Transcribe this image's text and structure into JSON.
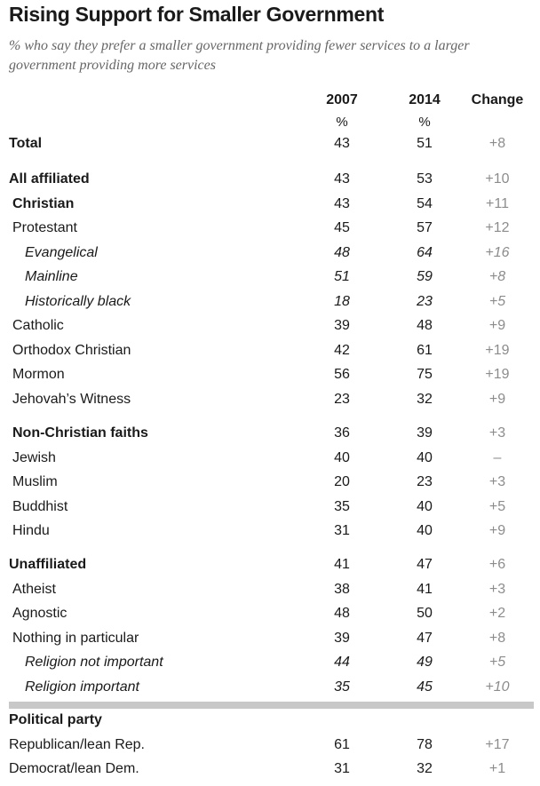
{
  "chart_data": {
    "type": "table",
    "title": "Rising Support for Smaller Government",
    "subtitle": "% who say they prefer a smaller government providing fewer services to a larger government providing more services",
    "columns": [
      "2007",
      "2014",
      "Change"
    ],
    "units_row": [
      "%",
      "%",
      ""
    ],
    "groups": [
      {
        "rows": [
          {
            "label": "Total",
            "level": 0,
            "bold": true,
            "italic": false,
            "y2007": "43",
            "y2014": "51",
            "change": "+8"
          }
        ]
      },
      {
        "rows": [
          {
            "label": "All affiliated",
            "level": 0,
            "bold": true,
            "italic": false,
            "y2007": "43",
            "y2014": "53",
            "change": "+10"
          },
          {
            "label": "Christian",
            "level": 1,
            "bold": true,
            "italic": false,
            "y2007": "43",
            "y2014": "54",
            "change": "+11"
          },
          {
            "label": "Protestant",
            "level": 1,
            "bold": false,
            "italic": false,
            "y2007": "45",
            "y2014": "57",
            "change": "+12"
          },
          {
            "label": "Evangelical",
            "level": 2,
            "bold": false,
            "italic": true,
            "y2007": "48",
            "y2014": "64",
            "change": "+16"
          },
          {
            "label": "Mainline",
            "level": 2,
            "bold": false,
            "italic": true,
            "y2007": "51",
            "y2014": "59",
            "change": "+8"
          },
          {
            "label": "Historically black",
            "level": 2,
            "bold": false,
            "italic": true,
            "y2007": "18",
            "y2014": "23",
            "change": "+5"
          },
          {
            "label": "Catholic",
            "level": 1,
            "bold": false,
            "italic": false,
            "y2007": "39",
            "y2014": "48",
            "change": "+9"
          },
          {
            "label": "Orthodox Christian",
            "level": 1,
            "bold": false,
            "italic": false,
            "y2007": "42",
            "y2014": "61",
            "change": "+19"
          },
          {
            "label": "Mormon",
            "level": 1,
            "bold": false,
            "italic": false,
            "y2007": "56",
            "y2014": "75",
            "change": "+19"
          },
          {
            "label": "Jehovah’s Witness",
            "level": 1,
            "bold": false,
            "italic": false,
            "y2007": "23",
            "y2014": "32",
            "change": "+9"
          }
        ]
      },
      {
        "rows": [
          {
            "label": "Non-Christian faiths",
            "level": 1,
            "bold": true,
            "italic": false,
            "y2007": "36",
            "y2014": "39",
            "change": "+3"
          },
          {
            "label": "Jewish",
            "level": 1,
            "bold": false,
            "italic": false,
            "y2007": "40",
            "y2014": "40",
            "change": "–"
          },
          {
            "label": "Muslim",
            "level": 1,
            "bold": false,
            "italic": false,
            "y2007": "20",
            "y2014": "23",
            "change": "+3"
          },
          {
            "label": "Buddhist",
            "level": 1,
            "bold": false,
            "italic": false,
            "y2007": "35",
            "y2014": "40",
            "change": "+5"
          },
          {
            "label": "Hindu",
            "level": 1,
            "bold": false,
            "italic": false,
            "y2007": "31",
            "y2014": "40",
            "change": "+9"
          }
        ]
      },
      {
        "rows": [
          {
            "label": "Unaffiliated",
            "level": 0,
            "bold": true,
            "italic": false,
            "y2007": "41",
            "y2014": "47",
            "change": "+6"
          },
          {
            "label": "Atheist",
            "level": 1,
            "bold": false,
            "italic": false,
            "y2007": "38",
            "y2014": "41",
            "change": "+3"
          },
          {
            "label": "Agnostic",
            "level": 1,
            "bold": false,
            "italic": false,
            "y2007": "48",
            "y2014": "50",
            "change": "+2"
          },
          {
            "label": "Nothing in particular",
            "level": 1,
            "bold": false,
            "italic": false,
            "y2007": "39",
            "y2014": "47",
            "change": "+8"
          },
          {
            "label": "Religion not important",
            "level": 2,
            "bold": false,
            "italic": true,
            "y2007": "44",
            "y2014": "49",
            "change": "+5"
          },
          {
            "label": "Religion important",
            "level": 2,
            "bold": false,
            "italic": true,
            "y2007": "35",
            "y2014": "45",
            "change": "+10"
          }
        ]
      },
      {
        "rows": [
          {
            "label": "Political party",
            "level": 0,
            "bold": true,
            "italic": false,
            "y2007": "",
            "y2014": "",
            "change": ""
          },
          {
            "label": "Republican/lean Rep.",
            "level": 0,
            "bold": false,
            "italic": false,
            "y2007": "61",
            "y2014": "78",
            "change": "+17"
          },
          {
            "label": "Democrat/lean Dem.",
            "level": 0,
            "bold": false,
            "italic": false,
            "y2007": "31",
            "y2014": "32",
            "change": "+1"
          }
        ]
      }
    ]
  },
  "colors": {
    "text": "#1a1a1a",
    "subtitle": "#666666",
    "change": "#8c8c8c",
    "divider": "#c8c8c8"
  }
}
